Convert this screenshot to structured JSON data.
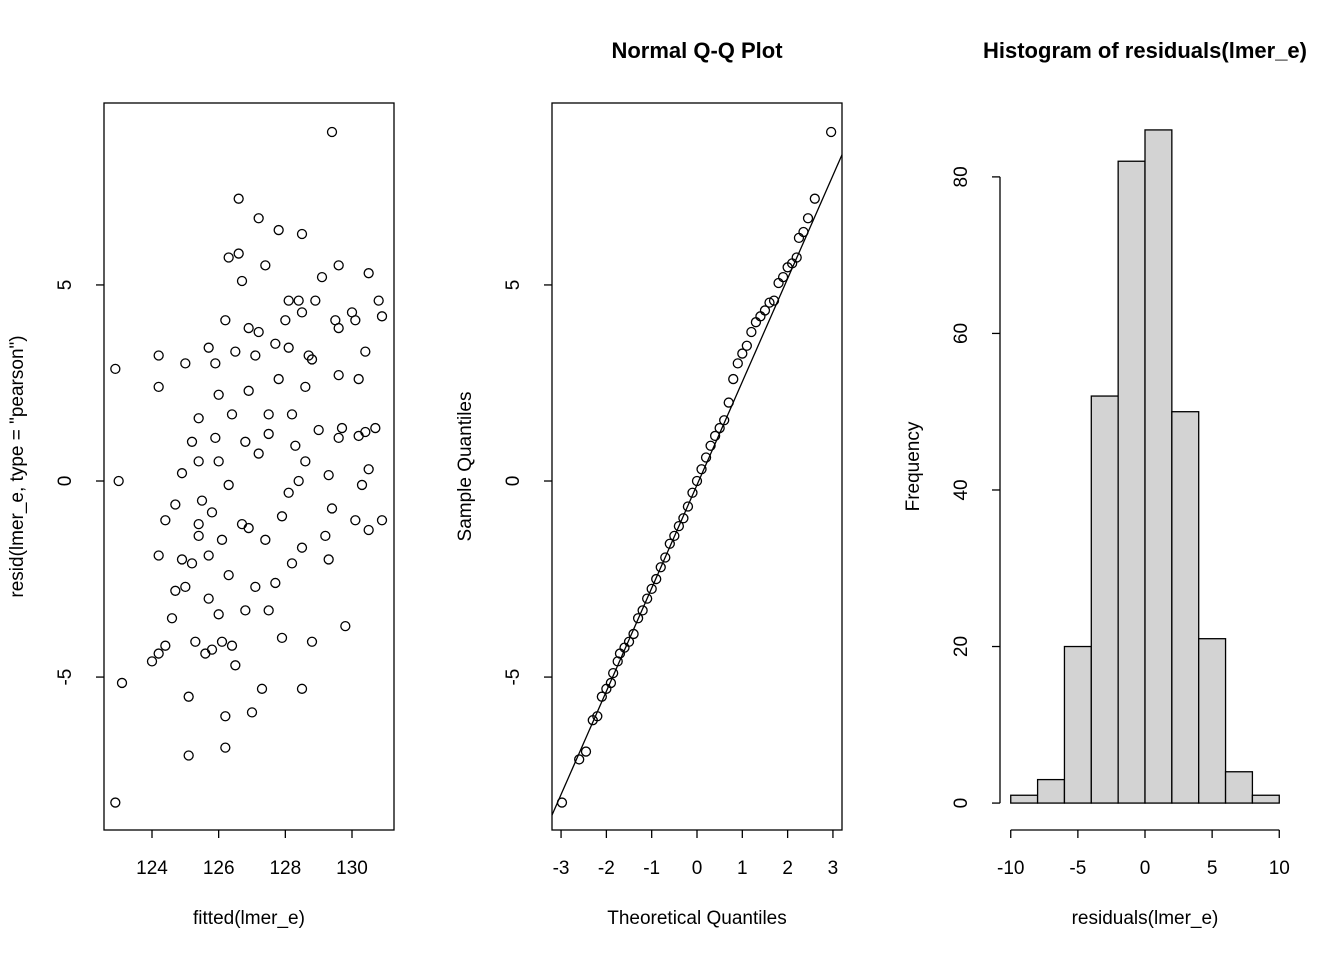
{
  "chart_data": [
    {
      "type": "scatter",
      "x_label": "fitted(lmer_e)",
      "y_label": "resid(lmer_e, type = \"pearson\")",
      "xlim": [
        122.56,
        131.26
      ],
      "ylim": [
        -8.9,
        9.64
      ],
      "xticks": [
        124,
        126,
        128,
        130
      ],
      "yticks": [
        -5,
        0,
        5
      ],
      "color": "#000000",
      "x": [
        122.9,
        123.0,
        122.9,
        123.1,
        124.0,
        124.2,
        124.4,
        124.2,
        124.2,
        124.2,
        124.4,
        124.6,
        124.7,
        124.7,
        124.9,
        125.0,
        125.1,
        125.1,
        124.9,
        125.0,
        125.2,
        125.2,
        125.3,
        125.4,
        125.4,
        125.4,
        125.4,
        125.5,
        125.6,
        125.7,
        125.7,
        125.7,
        125.8,
        125.8,
        125.9,
        125.9,
        126.0,
        126.0,
        126.0,
        126.1,
        126.1,
        126.2,
        126.2,
        126.2,
        126.3,
        126.3,
        126.3,
        126.4,
        126.4,
        126.5,
        126.5,
        126.6,
        126.6,
        126.7,
        126.7,
        126.8,
        126.8,
        126.9,
        126.9,
        126.9,
        127.0,
        127.1,
        127.1,
        127.2,
        127.2,
        127.2,
        127.3,
        127.4,
        127.4,
        127.5,
        127.5,
        127.5,
        127.7,
        127.7,
        127.8,
        127.8,
        127.9,
        127.9,
        128.0,
        128.1,
        128.1,
        128.1,
        128.2,
        128.2,
        128.3,
        128.4,
        128.4,
        128.5,
        128.5,
        128.5,
        128.5,
        128.6,
        128.6,
        128.7,
        128.8,
        128.8,
        128.9,
        129.0,
        129.1,
        129.2,
        129.3,
        129.3,
        129.4,
        129.4,
        129.5,
        129.6,
        129.6,
        129.6,
        129.6,
        129.7,
        129.8,
        130.0,
        130.1,
        130.1,
        130.2,
        130.2,
        130.3,
        130.4,
        130.4,
        130.5,
        130.5,
        130.5,
        130.7,
        130.8,
        130.9,
        130.9
      ],
      "values": [
        2.86,
        0.0,
        -8.2,
        -5.15,
        -4.6,
        -4.4,
        -4.2,
        -1.9,
        2.4,
        3.2,
        -1.0,
        -3.5,
        -2.8,
        -0.6,
        0.2,
        3.0,
        -5.5,
        -7.0,
        -2.0,
        -2.7,
        1.0,
        -2.1,
        -4.1,
        -1.1,
        1.6,
        -1.4,
        0.5,
        -0.5,
        -4.4,
        3.4,
        -1.9,
        -3.0,
        -4.3,
        -0.8,
        1.1,
        3.0,
        2.2,
        0.5,
        -3.4,
        -4.1,
        -1.5,
        4.1,
        -6.0,
        -6.8,
        -0.1,
        5.7,
        -2.4,
        -4.2,
        1.7,
        3.3,
        -4.7,
        5.8,
        7.2,
        -1.1,
        5.1,
        1.0,
        -3.3,
        3.9,
        -1.2,
        2.3,
        -5.9,
        3.2,
        -2.7,
        6.7,
        3.8,
        0.7,
        -5.3,
        -1.5,
        5.5,
        1.2,
        1.7,
        -3.3,
        -2.6,
        3.5,
        2.6,
        6.4,
        -0.9,
        -4.0,
        4.1,
        -0.3,
        4.6,
        3.4,
        -2.1,
        1.7,
        0.9,
        4.6,
        0.0,
        4.3,
        -1.7,
        6.3,
        -5.3,
        2.4,
        0.5,
        3.2,
        -4.1,
        3.1,
        4.6,
        1.3,
        5.2,
        -1.4,
        0.15,
        -2.0,
        8.9,
        -0.7,
        4.1,
        5.5,
        1.1,
        2.7,
        3.9,
        1.35,
        -3.7,
        4.3,
        -1.0,
        4.1,
        2.6,
        1.15,
        -0.1,
        3.3,
        1.25,
        5.3,
        0.3,
        -1.25,
        1.35,
        4.6,
        4.2,
        -1.0
      ]
    },
    {
      "type": "qq",
      "title": "Normal Q-Q Plot",
      "x_label": "Theoretical Quantiles",
      "y_label": "Sample Quantiles",
      "xlim": [
        -3.2,
        3.2
      ],
      "ylim": [
        -8.9,
        9.64
      ],
      "xticks": [
        -3,
        -2,
        -1,
        0,
        1,
        2,
        3
      ],
      "yticks": [
        -5,
        0,
        5
      ],
      "color": "#000000",
      "x": [
        -2.98,
        -2.6,
        -2.45,
        -2.3,
        -2.2,
        -2.1,
        -2.0,
        -1.9,
        -1.85,
        -1.75,
        -1.7,
        -1.6,
        -1.5,
        -1.4,
        -1.3,
        -1.2,
        -1.1,
        -1.0,
        -0.9,
        -0.8,
        -0.7,
        -0.6,
        -0.5,
        -0.4,
        -0.3,
        -0.2,
        -0.1,
        0.0,
        0.1,
        0.2,
        0.3,
        0.4,
        0.5,
        0.6,
        0.7,
        0.8,
        0.9,
        1.0,
        1.1,
        1.2,
        1.3,
        1.4,
        1.5,
        1.6,
        1.7,
        1.8,
        1.9,
        2.0,
        2.1,
        2.2,
        2.25,
        2.35,
        2.45,
        2.6,
        2.96
      ],
      "values": [
        -8.2,
        -7.1,
        -6.9,
        -6.1,
        -6.0,
        -5.5,
        -5.3,
        -5.15,
        -4.9,
        -4.6,
        -4.4,
        -4.25,
        -4.1,
        -3.9,
        -3.5,
        -3.3,
        -3.0,
        -2.75,
        -2.5,
        -2.2,
        -1.95,
        -1.6,
        -1.4,
        -1.15,
        -0.95,
        -0.65,
        -0.3,
        0.0,
        0.3,
        0.6,
        0.9,
        1.15,
        1.35,
        1.55,
        2.0,
        2.6,
        3.0,
        3.25,
        3.45,
        3.8,
        4.05,
        4.2,
        4.35,
        4.55,
        4.6,
        5.05,
        5.2,
        5.45,
        5.55,
        5.7,
        6.2,
        6.35,
        6.7,
        7.2,
        8.9
      ],
      "qqline": {
        "x": [
          -3.2,
          3.2
        ],
        "y": [
          -8.52,
          8.32
        ]
      }
    },
    {
      "type": "histogram",
      "title": "Histogram of residuals(lmer_e)",
      "x_label": "residuals(lmer_e)",
      "y_label": "Frequency",
      "xlim": [
        -10.8,
        10.8
      ],
      "ylim": [
        -3.44,
        89.44
      ],
      "xticks": [
        -10,
        -5,
        0,
        5,
        10
      ],
      "yticks": [
        0,
        20,
        40,
        60,
        80
      ],
      "color": "#d3d3d3",
      "bins": [
        -10,
        -8,
        -6,
        -4,
        -2,
        0,
        2,
        4,
        6,
        8,
        10
      ],
      "values": [
        1,
        3,
        20,
        52,
        82,
        86,
        50,
        21,
        4,
        1
      ]
    }
  ]
}
